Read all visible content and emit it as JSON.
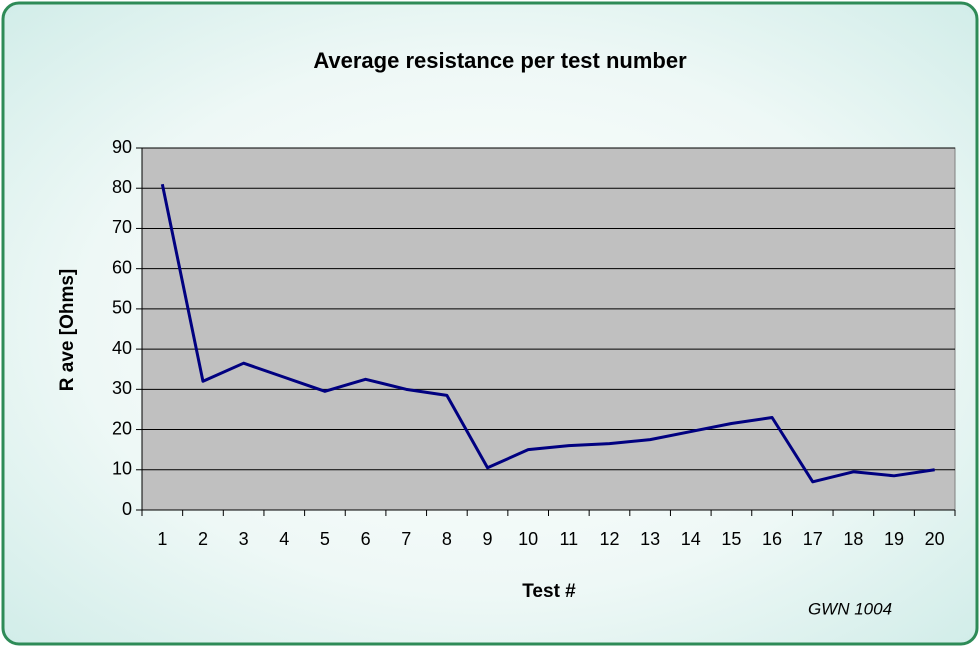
{
  "chart_data": {
    "type": "line",
    "title": "Average resistance per test number",
    "x_label": "Test #",
    "y_label": "R ave [Ohms]",
    "annotation": "GWN 1004",
    "categories": [
      "1",
      "2",
      "3",
      "4",
      "5",
      "6",
      "7",
      "8",
      "9",
      "10",
      "11",
      "12",
      "13",
      "14",
      "15",
      "16",
      "17",
      "18",
      "19",
      "20"
    ],
    "series": [
      {
        "name": "R ave",
        "color": "#000080",
        "values": [
          81,
          32,
          36.5,
          33,
          29.5,
          32.5,
          30,
          28.5,
          10.5,
          15,
          16,
          16.5,
          17.5,
          19.5,
          21.5,
          23,
          7,
          9.5,
          8.5,
          10
        ]
      }
    ],
    "ylim": [
      0,
      90
    ],
    "yticks": [
      0,
      10,
      20,
      30,
      40,
      50,
      60,
      70,
      80,
      90
    ],
    "grid": true,
    "plot_background": "#c0c0c0"
  }
}
